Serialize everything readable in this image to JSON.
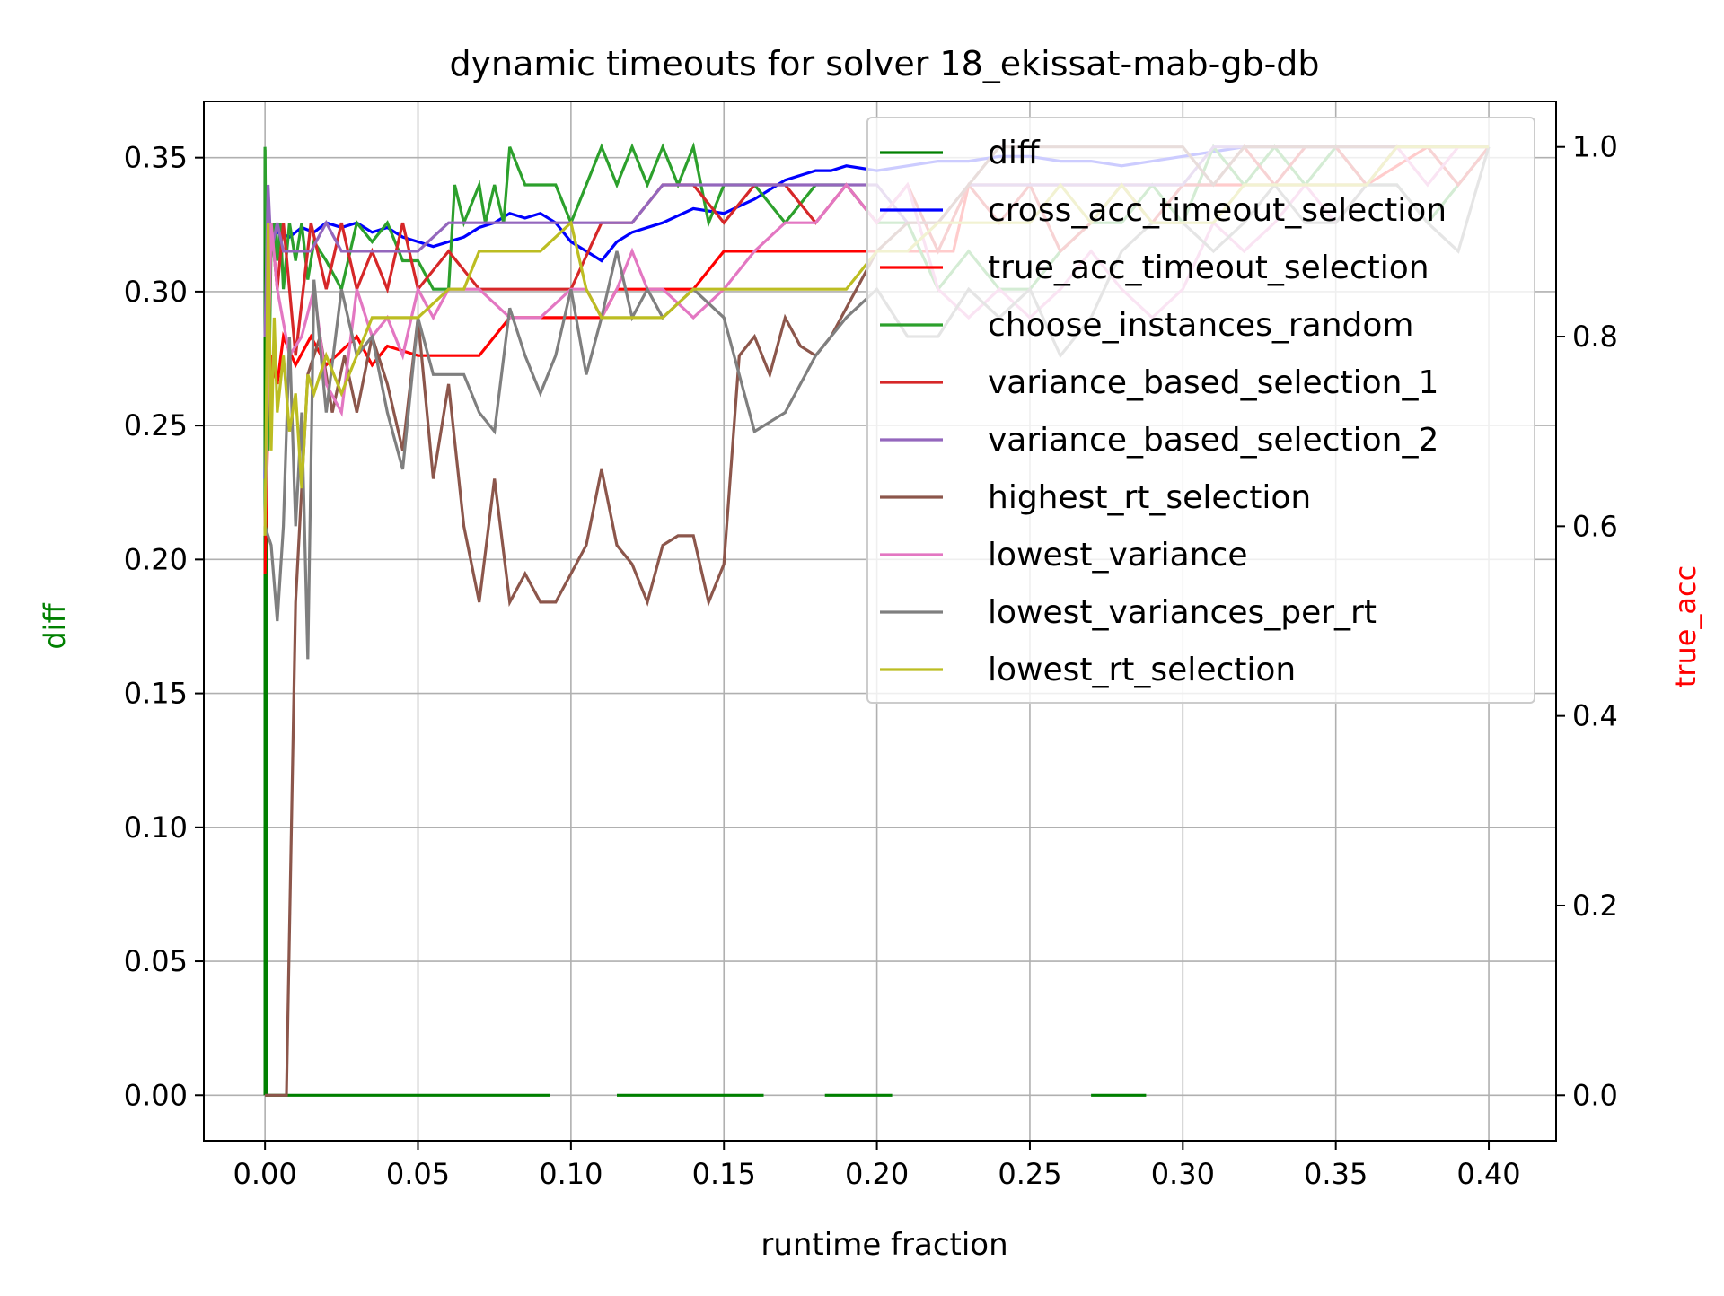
{
  "chart_data": {
    "type": "line",
    "title": "dynamic timeouts for solver 18_ekissat-mab-gb-db",
    "xlabel": "runtime fraction",
    "ylabel_left": "diff",
    "ylabel_right": "true_acc",
    "xlim": [
      -0.02,
      0.422
    ],
    "ylim_left": [
      -0.017,
      0.371
    ],
    "ylim_right": [
      -0.048,
      1.048
    ],
    "x_ticks": [
      "0.00",
      "0.05",
      "0.10",
      "0.15",
      "0.20",
      "0.25",
      "0.30",
      "0.35",
      "0.40"
    ],
    "y_left_ticks": [
      "0.00",
      "0.05",
      "0.10",
      "0.15",
      "0.20",
      "0.25",
      "0.30",
      "0.35"
    ],
    "y_right_ticks": [
      "0.0",
      "0.2",
      "0.4",
      "0.6",
      "0.8",
      "1.0"
    ],
    "grid": true,
    "legend_position": "top-right",
    "colors": {
      "diff": "#008000",
      "cross_acc_timeout_selection": "#0000ff",
      "true_acc_timeout_selection": "#ff0000",
      "choose_instances_random": "#2ca02c",
      "variance_based_selection_1": "#d62728",
      "variance_based_selection_2": "#9467bd",
      "highest_rt_selection": "#8c564b",
      "lowest_variance": "#e377c2",
      "lowest_variances_per_rt": "#7f7f7f",
      "lowest_rt_selection": "#bcbd22",
      "ylabel_left": "#008000",
      "ylabel_right": "#ff0000"
    },
    "series": [
      {
        "name": "diff",
        "axis": "left",
        "style": "dashed",
        "x": [
          0.0,
          0.0,
          0.0005,
          0.0006,
          0.093,
          0.095,
          0.103,
          0.105,
          0.111,
          0.113,
          0.115,
          0.119,
          0.128,
          0.13,
          0.163,
          0.172,
          0.176,
          0.18,
          0.183,
          0.187,
          0.205,
          0.216,
          0.228,
          0.234,
          0.239,
          0.245,
          0.256,
          0.263,
          0.27,
          0.288
        ],
        "y": [
          0.0,
          0.353,
          0.195,
          0.0,
          0.0,
          null,
          0.0,
          null,
          0.0,
          null,
          0.0,
          0.0,
          0.0,
          0.0,
          0.0,
          null,
          0.0,
          null,
          0.0,
          0.0,
          0.0,
          null,
          0.0,
          null,
          0.0,
          null,
          0.0,
          null,
          0.0,
          0.0
        ]
      },
      {
        "name": "cross_acc_timeout_selection",
        "axis": "right",
        "style": "solid",
        "x": [
          0.0,
          0.002,
          0.004,
          0.008,
          0.012,
          0.016,
          0.02,
          0.025,
          0.03,
          0.035,
          0.04,
          0.045,
          0.05,
          0.055,
          0.06,
          0.065,
          0.07,
          0.075,
          0.08,
          0.085,
          0.09,
          0.095,
          0.1,
          0.105,
          0.11,
          0.115,
          0.12,
          0.13,
          0.14,
          0.15,
          0.16,
          0.165,
          0.17,
          0.175,
          0.18,
          0.185,
          0.19,
          0.2,
          0.21,
          0.22,
          0.23,
          0.24,
          0.25,
          0.26,
          0.27,
          0.28,
          0.29,
          0.3,
          0.31,
          0.32,
          0.33,
          0.34,
          0.35,
          0.36,
          0.37,
          0.38,
          0.39,
          0.4
        ],
        "y": [
          0.65,
          0.9,
          0.91,
          0.905,
          0.915,
          0.91,
          0.92,
          0.915,
          0.92,
          0.91,
          0.915,
          0.905,
          0.9,
          0.895,
          0.9,
          0.905,
          0.915,
          0.92,
          0.93,
          0.925,
          0.93,
          0.92,
          0.9,
          0.89,
          0.88,
          0.9,
          0.91,
          0.92,
          0.935,
          0.93,
          0.945,
          0.955,
          0.965,
          0.97,
          0.975,
          0.975,
          0.98,
          0.975,
          0.98,
          0.985,
          0.985,
          0.99,
          0.99,
          0.985,
          0.985,
          0.98,
          0.985,
          0.99,
          0.995,
          1.0,
          1.0,
          1.0,
          1.0,
          1.0,
          1.0,
          1.0,
          1.0,
          1.0
        ]
      },
      {
        "name": "true_acc_timeout_selection",
        "axis": "right",
        "style": "solid",
        "x": [
          0.0,
          0.001,
          0.002,
          0.004,
          0.006,
          0.01,
          0.015,
          0.02,
          0.03,
          0.035,
          0.04,
          0.05,
          0.06,
          0.065,
          0.07,
          0.08,
          0.09,
          0.095,
          0.1,
          0.105,
          0.11,
          0.115,
          0.12,
          0.125,
          0.13,
          0.14,
          0.15,
          0.16,
          0.17,
          0.18,
          0.19,
          0.195,
          0.2,
          0.21,
          0.22,
          0.225,
          0.23,
          0.24,
          0.25,
          0.26,
          0.27,
          0.28,
          0.3,
          0.32,
          0.34,
          0.36,
          0.38,
          0.4
        ],
        "y": [
          0.55,
          0.72,
          0.78,
          0.75,
          0.8,
          0.77,
          0.8,
          0.77,
          0.8,
          0.77,
          0.79,
          0.78,
          0.78,
          0.78,
          0.78,
          0.82,
          0.82,
          0.82,
          0.82,
          0.82,
          0.82,
          0.85,
          0.85,
          0.85,
          0.85,
          0.85,
          0.89,
          0.89,
          0.89,
          0.89,
          0.89,
          0.89,
          0.89,
          0.89,
          0.89,
          0.89,
          0.96,
          0.96,
          0.96,
          0.96,
          0.96,
          0.96,
          0.96,
          0.96,
          0.96,
          0.96,
          1.0,
          1.0
        ]
      },
      {
        "name": "choose_instances_random",
        "axis": "right",
        "style": "solid",
        "x": [
          0.0,
          0.001,
          0.002,
          0.003,
          0.004,
          0.005,
          0.006,
          0.008,
          0.01,
          0.012,
          0.014,
          0.016,
          0.02,
          0.025,
          0.03,
          0.035,
          0.04,
          0.045,
          0.05,
          0.055,
          0.06,
          0.062,
          0.065,
          0.07,
          0.072,
          0.075,
          0.078,
          0.08,
          0.085,
          0.09,
          0.095,
          0.1,
          0.105,
          0.11,
          0.115,
          0.12,
          0.125,
          0.13,
          0.135,
          0.14,
          0.145,
          0.15,
          0.155,
          0.16,
          0.17,
          0.18,
          0.19,
          0.2,
          0.21,
          0.22,
          0.23,
          0.24,
          0.25,
          0.26,
          0.27,
          0.28,
          0.29,
          0.3,
          0.31,
          0.32,
          0.33,
          0.34,
          0.35,
          0.36,
          0.37,
          0.38,
          0.39,
          0.4
        ],
        "y": [
          1.0,
          0.68,
          0.9,
          0.92,
          0.88,
          0.92,
          0.85,
          0.92,
          0.88,
          0.92,
          0.86,
          0.9,
          0.88,
          0.85,
          0.92,
          0.9,
          0.92,
          0.88,
          0.88,
          0.85,
          0.85,
          0.96,
          0.92,
          0.96,
          0.92,
          0.96,
          0.92,
          1.0,
          0.96,
          0.96,
          0.96,
          0.92,
          0.96,
          1.0,
          0.96,
          1.0,
          0.96,
          1.0,
          0.96,
          1.0,
          0.92,
          0.96,
          0.96,
          0.96,
          0.92,
          0.96,
          0.96,
          0.92,
          0.92,
          0.85,
          0.89,
          0.85,
          0.85,
          0.89,
          0.92,
          0.92,
          0.96,
          0.92,
          1.0,
          0.96,
          1.0,
          0.96,
          1.0,
          0.96,
          0.96,
          0.92,
          0.96,
          1.0
        ]
      },
      {
        "name": "variance_based_selection_1",
        "axis": "right",
        "style": "solid",
        "x": [
          0.0,
          0.002,
          0.004,
          0.006,
          0.01,
          0.015,
          0.02,
          0.025,
          0.03,
          0.035,
          0.04,
          0.045,
          0.05,
          0.06,
          0.07,
          0.08,
          0.09,
          0.1,
          0.11,
          0.12,
          0.13,
          0.14,
          0.15,
          0.16,
          0.17,
          0.18,
          0.19,
          0.2,
          0.21,
          0.22,
          0.23,
          0.24,
          0.25,
          0.26,
          0.27,
          0.28,
          0.29,
          0.3,
          0.31,
          0.32,
          0.33,
          0.34,
          0.35,
          0.36,
          0.37,
          0.38,
          0.39,
          0.4
        ],
        "y": [
          0.6,
          0.92,
          0.85,
          0.92,
          0.78,
          0.92,
          0.85,
          0.92,
          0.85,
          0.89,
          0.85,
          0.92,
          0.85,
          0.89,
          0.85,
          0.85,
          0.85,
          0.85,
          0.92,
          0.92,
          0.96,
          0.96,
          0.92,
          0.96,
          0.96,
          0.92,
          0.96,
          0.92,
          0.96,
          0.89,
          0.96,
          0.92,
          0.96,
          0.89,
          0.92,
          0.96,
          0.92,
          0.96,
          0.96,
          1.0,
          0.96,
          1.0,
          1.0,
          0.96,
          1.0,
          1.0,
          0.96,
          1.0
        ]
      },
      {
        "name": "variance_based_selection_2",
        "axis": "right",
        "style": "solid",
        "x": [
          0.0,
          0.001,
          0.002,
          0.004,
          0.006,
          0.01,
          0.015,
          0.02,
          0.025,
          0.03,
          0.035,
          0.04,
          0.05,
          0.06,
          0.07,
          0.08,
          0.09,
          0.1,
          0.11,
          0.12,
          0.13,
          0.14,
          0.15,
          0.16,
          0.17,
          0.18,
          0.19,
          0.2,
          0.21,
          0.22,
          0.23,
          0.24,
          0.25,
          0.26,
          0.27,
          0.28,
          0.29,
          0.3,
          0.31,
          0.32,
          0.33,
          0.34,
          0.35,
          0.36,
          0.37,
          0.38,
          0.39,
          0.4
        ],
        "y": [
          0.8,
          0.96,
          0.89,
          0.92,
          0.89,
          0.89,
          0.89,
          0.92,
          0.89,
          0.89,
          0.89,
          0.89,
          0.89,
          0.92,
          0.92,
          0.92,
          0.92,
          0.92,
          0.92,
          0.92,
          0.96,
          0.96,
          0.96,
          0.96,
          0.96,
          0.96,
          0.96,
          0.96,
          0.92,
          0.92,
          0.96,
          0.96,
          0.96,
          0.96,
          0.96,
          0.96,
          0.96,
          0.96,
          1.0,
          1.0,
          1.0,
          1.0,
          1.0,
          1.0,
          1.0,
          1.0,
          1.0,
          1.0
        ]
      },
      {
        "name": "highest_rt_selection",
        "axis": "right",
        "style": "solid",
        "x": [
          0.0,
          0.004,
          0.007,
          0.01,
          0.014,
          0.018,
          0.022,
          0.026,
          0.03,
          0.035,
          0.04,
          0.045,
          0.05,
          0.055,
          0.06,
          0.065,
          0.07,
          0.075,
          0.08,
          0.085,
          0.09,
          0.095,
          0.1,
          0.105,
          0.11,
          0.115,
          0.12,
          0.125,
          0.13,
          0.135,
          0.14,
          0.145,
          0.15,
          0.155,
          0.16,
          0.165,
          0.17,
          0.175,
          0.18,
          0.185,
          0.19,
          0.2,
          0.21,
          0.22,
          0.23,
          0.24,
          0.25,
          0.26,
          0.27,
          0.28,
          0.29,
          0.3,
          0.31,
          0.32,
          0.33,
          0.34,
          0.35,
          0.36,
          0.37,
          0.38,
          0.39,
          0.4
        ],
        "y": [
          0.0,
          0.0,
          0.0,
          0.52,
          0.76,
          0.8,
          0.72,
          0.78,
          0.72,
          0.8,
          0.75,
          0.68,
          0.82,
          0.65,
          0.75,
          0.6,
          0.52,
          0.65,
          0.52,
          0.55,
          0.52,
          0.52,
          0.55,
          0.58,
          0.66,
          0.58,
          0.56,
          0.52,
          0.58,
          0.59,
          0.59,
          0.52,
          0.56,
          0.78,
          0.8,
          0.76,
          0.82,
          0.79,
          0.78,
          0.8,
          0.83,
          0.89,
          0.92,
          0.92,
          0.96,
          1.0,
          1.0,
          1.0,
          1.0,
          1.0,
          1.0,
          1.0,
          0.96,
          1.0,
          1.0,
          1.0,
          1.0,
          1.0,
          1.0,
          1.0,
          1.0,
          1.0
        ]
      },
      {
        "name": "lowest_variance",
        "axis": "right",
        "style": "solid",
        "x": [
          0.0,
          0.002,
          0.004,
          0.008,
          0.012,
          0.016,
          0.02,
          0.025,
          0.03,
          0.035,
          0.04,
          0.045,
          0.05,
          0.055,
          0.06,
          0.07,
          0.08,
          0.09,
          0.1,
          0.105,
          0.11,
          0.115,
          0.12,
          0.125,
          0.13,
          0.14,
          0.15,
          0.16,
          0.17,
          0.18,
          0.19,
          0.2,
          0.21,
          0.22,
          0.23,
          0.24,
          0.25,
          0.26,
          0.27,
          0.28,
          0.29,
          0.3,
          0.31,
          0.32,
          0.33,
          0.34,
          0.35,
          0.36,
          0.37,
          0.38,
          0.39,
          0.4
        ],
        "y": [
          0.6,
          0.92,
          0.85,
          0.78,
          0.8,
          0.85,
          0.75,
          0.72,
          0.85,
          0.8,
          0.82,
          0.78,
          0.85,
          0.82,
          0.85,
          0.85,
          0.82,
          0.82,
          0.85,
          0.85,
          0.82,
          0.85,
          0.89,
          0.85,
          0.85,
          0.82,
          0.85,
          0.89,
          0.92,
          0.92,
          0.96,
          0.92,
          0.96,
          0.85,
          0.82,
          0.85,
          0.82,
          0.85,
          0.89,
          0.85,
          0.82,
          0.85,
          0.92,
          0.89,
          0.92,
          0.96,
          0.92,
          0.96,
          1.0,
          0.96,
          1.0,
          1.0
        ]
      },
      {
        "name": "lowest_variances_per_rt",
        "axis": "right",
        "style": "solid",
        "x": [
          0.0,
          0.002,
          0.004,
          0.006,
          0.008,
          0.01,
          0.012,
          0.014,
          0.016,
          0.02,
          0.025,
          0.03,
          0.035,
          0.04,
          0.045,
          0.05,
          0.055,
          0.06,
          0.065,
          0.07,
          0.075,
          0.08,
          0.085,
          0.09,
          0.095,
          0.1,
          0.105,
          0.11,
          0.115,
          0.12,
          0.125,
          0.13,
          0.14,
          0.15,
          0.16,
          0.17,
          0.18,
          0.19,
          0.2,
          0.21,
          0.22,
          0.23,
          0.24,
          0.25,
          0.26,
          0.27,
          0.28,
          0.29,
          0.3,
          0.31,
          0.32,
          0.33,
          0.34,
          0.35,
          0.36,
          0.37,
          0.38,
          0.39,
          0.4
        ],
        "y": [
          0.6,
          0.58,
          0.5,
          0.6,
          0.8,
          0.6,
          0.72,
          0.46,
          0.86,
          0.72,
          0.85,
          0.78,
          0.8,
          0.72,
          0.66,
          0.82,
          0.76,
          0.76,
          0.76,
          0.72,
          0.7,
          0.83,
          0.78,
          0.74,
          0.78,
          0.85,
          0.76,
          0.82,
          0.89,
          0.82,
          0.85,
          0.82,
          0.85,
          0.82,
          0.7,
          0.72,
          0.78,
          0.82,
          0.85,
          0.8,
          0.8,
          0.85,
          0.82,
          0.85,
          0.78,
          0.82,
          0.89,
          0.92,
          0.92,
          0.89,
          0.92,
          0.96,
          0.92,
          0.92,
          0.96,
          0.96,
          0.92,
          0.89,
          1.0
        ]
      },
      {
        "name": "lowest_rt_selection",
        "axis": "right",
        "style": "solid",
        "x": [
          0.0,
          0.001,
          0.002,
          0.003,
          0.004,
          0.006,
          0.008,
          0.01,
          0.012,
          0.014,
          0.016,
          0.02,
          0.025,
          0.03,
          0.035,
          0.04,
          0.05,
          0.06,
          0.065,
          0.07,
          0.08,
          0.09,
          0.1,
          0.105,
          0.11,
          0.12,
          0.13,
          0.14,
          0.15,
          0.16,
          0.17,
          0.18,
          0.19,
          0.2,
          0.21,
          0.22,
          0.23,
          0.24,
          0.25,
          0.26,
          0.27,
          0.28,
          0.29,
          0.3,
          0.31,
          0.32,
          0.33,
          0.34,
          0.35,
          0.36,
          0.37,
          0.38,
          0.39,
          0.4
        ],
        "y": [
          0.59,
          0.92,
          0.68,
          0.82,
          0.72,
          0.78,
          0.7,
          0.74,
          0.64,
          0.76,
          0.74,
          0.78,
          0.74,
          0.78,
          0.82,
          0.82,
          0.82,
          0.85,
          0.85,
          0.89,
          0.89,
          0.89,
          0.92,
          0.85,
          0.82,
          0.82,
          0.82,
          0.85,
          0.85,
          0.85,
          0.85,
          0.85,
          0.85,
          0.89,
          0.89,
          0.92,
          0.92,
          0.92,
          0.92,
          0.96,
          0.92,
          0.96,
          0.92,
          0.92,
          0.92,
          0.96,
          0.96,
          0.96,
          0.96,
          0.96,
          1.0,
          1.0,
          1.0,
          1.0
        ]
      }
    ]
  }
}
